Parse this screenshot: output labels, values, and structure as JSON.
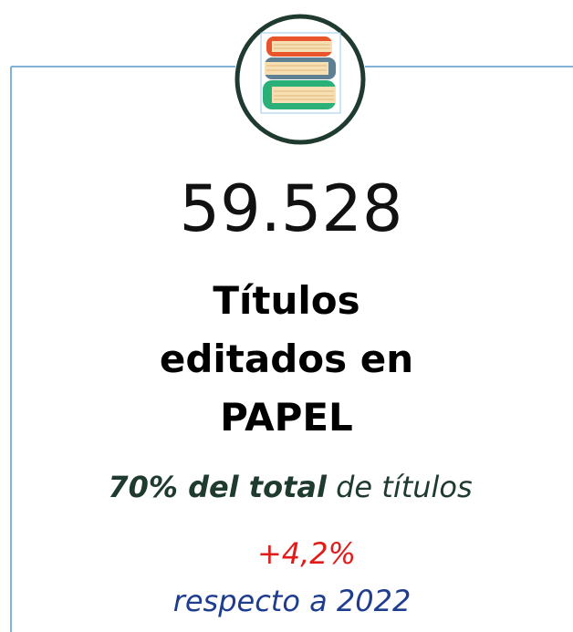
{
  "stat": {
    "value": "59.528",
    "label_lines": [
      "Títulos",
      "editados en",
      "PAPEL"
    ],
    "share_strong": "70% del total",
    "share_rest": "de títulos",
    "change": "+4,2%",
    "change_note": "respecto a 2022"
  }
}
